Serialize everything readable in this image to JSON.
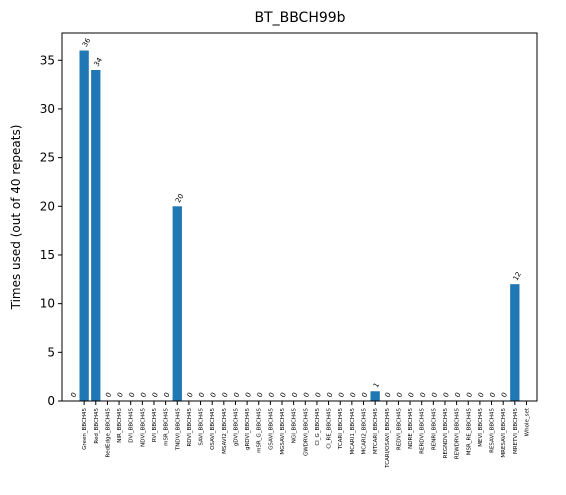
{
  "chart_data": {
    "type": "bar",
    "title": "BT_BBCH99b",
    "ylabel": "Times used (out of 40 repeats)",
    "categories": [
      null,
      "Green_BBCH45",
      "Red_BBCH45",
      "RedEdge_BBCH45",
      "NIR_BBCH45",
      "DVI_BBCH45",
      "NDVI_BBCH45",
      "RVI_BBCH45",
      "mSR_BBCH45",
      "TNDVI_BBCH45",
      "RDVI_BBCH45",
      "SAVI_BBCH45",
      "OSAVI_BBCH45",
      "MSAVI2_BBCH45",
      "gDVI_BBCH45",
      "gRDVI_BBCH45",
      "mSR_G_BBCH45",
      "GSAVI_BBCH45",
      "MGSAVI_BBCH45",
      "NGI_BBCH45",
      "GWDRVI_BBCH45",
      "CI_G_BBCH45",
      "CI_RE_BBCH45",
      "TCARI_BBCH45",
      "MCARI1_BBCH45",
      "MCARI2_BBCH45",
      "MTCARI_BBCH45",
      "TCARI/OSAVI_BBCH45",
      "REDVI_BBCH45",
      "NDRE_BBCH45",
      "RERDVI_BBCH45",
      "RENRI_BBCH45",
      "REGNDVI_BBCH45",
      "REWDRVI_BBCH45",
      "MSR_RE_BBCH45",
      "MEVI_BBCH45",
      "RESAVI_BBCH45",
      "MRESAVI_BBCH45",
      "MRETVI_BBCH45",
      "Whole_set"
    ],
    "values": [
      0,
      36,
      34,
      0,
      0,
      0,
      0,
      0,
      0,
      20,
      0,
      0,
      0,
      0,
      0,
      0,
      0,
      0,
      0,
      0,
      0,
      0,
      0,
      0,
      0,
      0,
      1,
      0,
      0,
      0,
      0,
      0,
      0,
      0,
      0,
      0,
      0,
      0,
      12,
      null
    ],
    "color": "#1f77b4",
    "ylim": [
      0,
      37.8
    ],
    "yticks": [
      0,
      5,
      10,
      15,
      20,
      25,
      30,
      35
    ]
  }
}
